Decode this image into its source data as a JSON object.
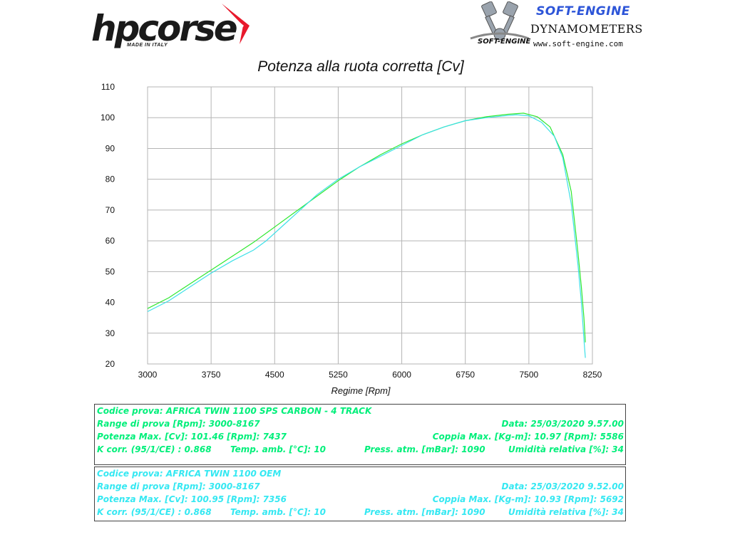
{
  "logos": {
    "hpcorse": {
      "name": "hpcorse",
      "tagline": "MADE IN ITALY"
    },
    "softengine": {
      "brand": "SOFT-ENGINE",
      "subtitle": "DYNAMOMETERS",
      "small": "SOFT-ENGINE",
      "url": "www.soft-engine.com"
    }
  },
  "chart_data": {
    "type": "line",
    "title": "Potenza alla ruota corretta [Cv]",
    "xlabel": "Regime [Rpm]",
    "ylabel": "",
    "xlim": [
      3000,
      8250
    ],
    "ylim": [
      20,
      110
    ],
    "xticks": [
      3000,
      3750,
      4500,
      5250,
      6000,
      6750,
      7500,
      8250
    ],
    "yticks": [
      20,
      30,
      40,
      50,
      60,
      70,
      80,
      90,
      100,
      110
    ],
    "grid": true,
    "legend": "none",
    "series": [
      {
        "color": "#2ee82e",
        "x": [
          3000,
          3250,
          3500,
          3750,
          4000,
          4250,
          4500,
          4750,
          5000,
          5250,
          5500,
          5750,
          6000,
          6250,
          6500,
          6750,
          7000,
          7250,
          7437,
          7600,
          7750,
          7900,
          8000,
          8080,
          8120,
          8150,
          8167
        ],
        "y": [
          38,
          41.5,
          46,
          50.5,
          55,
          59.5,
          64.5,
          69.5,
          74.5,
          79.5,
          84,
          88,
          91.5,
          94.5,
          97,
          99,
          100.3,
          101.1,
          101.46,
          100.3,
          97,
          88,
          76,
          56,
          45,
          35,
          27
        ]
      },
      {
        "color": "#3de0e8",
        "x": [
          3000,
          3250,
          3500,
          3750,
          4000,
          4250,
          4400,
          4600,
          4800,
          5000,
          5250,
          5500,
          5750,
          6000,
          6250,
          6500,
          6750,
          7000,
          7250,
          7356,
          7500,
          7650,
          7800,
          7900,
          8000,
          8080,
          8120,
          8150,
          8167
        ],
        "y": [
          37,
          40.5,
          45,
          49.5,
          53.5,
          57,
          60,
          65,
          70,
          75,
          80,
          84,
          87.5,
          91,
          94.5,
          97,
          99,
          100,
          100.7,
          100.95,
          100.6,
          98.5,
          94,
          87,
          72,
          52,
          40,
          28,
          22
        ]
      }
    ]
  },
  "tests": [
    {
      "color": "#00ef7a",
      "codice": "Codice prova: AFRICA TWIN 1100  SPS CARBON  -  4 TRACK",
      "range": "Range di prova [Rpm]: 3000-8167",
      "data": "Data: 25/03/2020  9.57.00",
      "potenza": "Potenza Max. [Cv]: 101.46  [Rpm]: 7437",
      "coppia": "Coppia Max. [Kg-m]: 10.97  [Rpm]: 5586",
      "kcorr": "K corr. (95/1/CE) : 0.868",
      "temp": "Temp. amb. [°C]: 10",
      "press": "Press. atm. [mBar]: 1090",
      "umid": "Umidità relativa [%]: 34"
    },
    {
      "color": "#35e8f2",
      "codice": "Codice prova: AFRICA TWIN 1100  OEM",
      "range": "Range di prova [Rpm]: 3000-8167",
      "data": "Data: 25/03/2020  9.52.00",
      "potenza": "Potenza Max. [Cv]: 100.95  [Rpm]: 7356",
      "coppia": "Coppia Max. [Kg-m]: 10.93  [Rpm]: 5692",
      "kcorr": "K corr. (95/1/CE) : 0.868",
      "temp": "Temp. amb. [°C]: 10",
      "press": "Press. atm. [mBar]: 1090",
      "umid": "Umidità relativa [%]: 34"
    }
  ]
}
